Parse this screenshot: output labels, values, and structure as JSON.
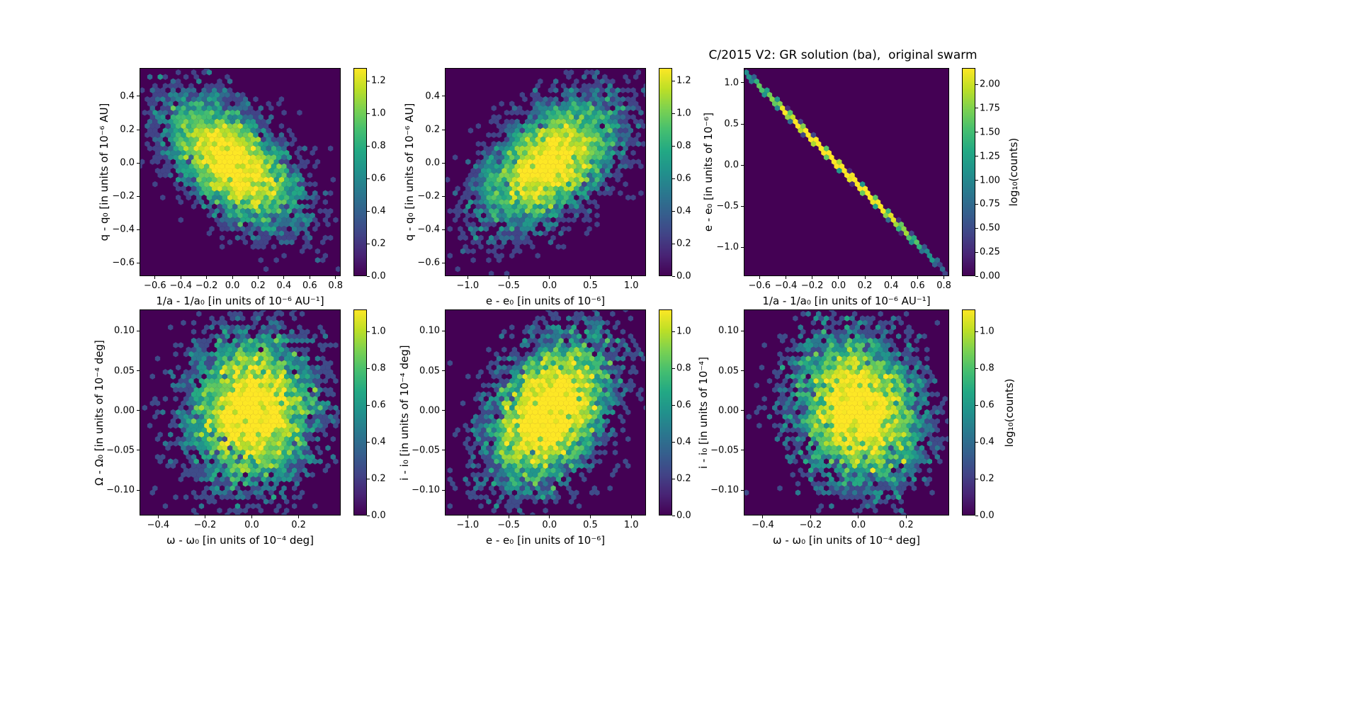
{
  "chart_data": {
    "type": "heatmap",
    "subtype": "hexbin_density_2d",
    "colormap": "viridis",
    "grid": "off",
    "title": "C/2015 V2: GR solution (ba),  original swarm",
    "colorbar_label": "log₁₀(counts)",
    "panels": [
      {
        "id": "dq_vs_dinva",
        "xlabel": "1/a - 1/a₀ [in units of 10⁻⁶ AU⁻¹]",
        "ylabel": "q - q₀ [in units of 10⁻⁶ AU]",
        "xlim": [
          -0.72,
          0.84
        ],
        "ylim": [
          -0.68,
          0.57
        ],
        "xticks": [
          -0.6,
          -0.4,
          -0.2,
          0.0,
          0.2,
          0.4,
          0.6,
          0.8
        ],
        "xtick_labels": [
          "−0.6",
          "−0.4",
          "−0.2",
          "0.0",
          "0.2",
          "0.4",
          "0.6",
          "0.8"
        ],
        "yticks": [
          -0.6,
          -0.4,
          -0.2,
          0.0,
          0.2,
          0.4
        ],
        "ytick_labels": [
          "−0.6",
          "−0.4",
          "−0.2",
          "0.0",
          "0.2",
          "0.4"
        ],
        "colorbar": {
          "min": 0,
          "max": 1.28,
          "ticks": [
            0.0,
            0.2,
            0.4,
            0.6,
            0.8,
            1.0,
            1.2
          ],
          "tick_labels": [
            "0.0",
            "0.2",
            "0.4",
            "0.6",
            "0.8",
            "1.0",
            "1.2"
          ]
        },
        "distribution": {
          "kind": "gaussian",
          "center": [
            0.0,
            0.0
          ],
          "sigma": [
            0.25,
            0.19
          ],
          "corr": -0.55,
          "peak_log10_counts": 1.26
        }
      },
      {
        "id": "dq_vs_de",
        "xlabel": "e - e₀ [in units of 10⁻⁶]",
        "ylabel": "q - q₀ [in units of 10⁻⁶ AU]",
        "xlim": [
          -1.28,
          1.18
        ],
        "ylim": [
          -0.68,
          0.57
        ],
        "xticks": [
          -1.0,
          -0.5,
          0.0,
          0.5,
          1.0
        ],
        "xtick_labels": [
          "−1.0",
          "−0.5",
          "0.0",
          "0.5",
          "1.0"
        ],
        "yticks": [
          -0.6,
          -0.4,
          -0.2,
          0.0,
          0.2,
          0.4
        ],
        "ytick_labels": [
          "−0.6",
          "−0.4",
          "−0.2",
          "0.0",
          "0.2",
          "0.4"
        ],
        "colorbar": {
          "min": 0,
          "max": 1.28,
          "ticks": [
            0.0,
            0.2,
            0.4,
            0.6,
            0.8,
            1.0,
            1.2
          ],
          "tick_labels": [
            "0.0",
            "0.2",
            "0.4",
            "0.6",
            "0.8",
            "1.0",
            "1.2"
          ]
        },
        "distribution": {
          "kind": "gaussian",
          "center": [
            0.0,
            0.0
          ],
          "sigma": [
            0.42,
            0.19
          ],
          "corr": 0.52,
          "peak_log10_counts": 1.26
        }
      },
      {
        "id": "de_vs_dinva",
        "xlabel": "1/a - 1/a₀ [in units of 10⁻⁶ AU⁻¹]",
        "ylabel": "e - e₀ [in units of 10⁻⁶]",
        "xlim": [
          -0.72,
          0.84
        ],
        "ylim": [
          -1.35,
          1.18
        ],
        "xticks": [
          -0.6,
          -0.4,
          -0.2,
          0.0,
          0.2,
          0.4,
          0.6,
          0.8
        ],
        "xtick_labels": [
          "−0.6",
          "−0.4",
          "−0.2",
          "0.0",
          "0.2",
          "0.4",
          "0.6",
          "0.8"
        ],
        "yticks": [
          -1.0,
          -0.5,
          0.0,
          0.5,
          1.0
        ],
        "ytick_labels": [
          "−1.0",
          "−0.5",
          "0.0",
          "0.5",
          "1.0"
        ],
        "colorbar": {
          "min": 0,
          "max": 2.17,
          "ticks": [
            0.0,
            0.25,
            0.5,
            0.75,
            1.0,
            1.25,
            1.5,
            1.75,
            2.0
          ],
          "tick_labels": [
            "0.00",
            "0.25",
            "0.50",
            "0.75",
            "1.00",
            "1.25",
            "1.50",
            "1.75",
            "2.00"
          ]
        },
        "distribution": {
          "kind": "line",
          "slope": -1.6,
          "intercept": 0.0,
          "x_sigma": 0.27,
          "y_jitter": 0.005,
          "peak_log10_counts": 2.1
        }
      },
      {
        "id": "dOmega_vs_domega",
        "xlabel": "ω - ω₀ [in units of 10⁻⁴ deg]",
        "ylabel": "Ω - Ω₀ [in units of 10⁻⁴ deg]",
        "xlim": [
          -0.48,
          0.38
        ],
        "ylim": [
          -0.132,
          0.127
        ],
        "xticks": [
          -0.4,
          -0.2,
          0.0,
          0.2
        ],
        "xtick_labels": [
          "−0.4",
          "−0.2",
          "0.0",
          "0.2"
        ],
        "yticks": [
          -0.1,
          -0.05,
          0.0,
          0.05,
          0.1
        ],
        "ytick_labels": [
          "−0.10",
          "−0.05",
          "0.00",
          "0.05",
          "0.10"
        ],
        "colorbar": {
          "min": 0,
          "max": 1.12,
          "ticks": [
            0.0,
            0.2,
            0.4,
            0.6,
            0.8,
            1.0
          ],
          "tick_labels": [
            "0.0",
            "0.2",
            "0.4",
            "0.6",
            "0.8",
            "1.0"
          ]
        },
        "distribution": {
          "kind": "gaussian",
          "center": [
            0.0,
            0.0
          ],
          "sigma": [
            0.135,
            0.047
          ],
          "corr": 0.05,
          "peak_log10_counts": 1.05
        }
      },
      {
        "id": "di_vs_de",
        "xlabel": "e - e₀ [in units of 10⁻⁶]",
        "ylabel": "i - i₀ [in units of 10⁻⁴ deg]",
        "xlim": [
          -1.28,
          1.18
        ],
        "ylim": [
          -0.132,
          0.127
        ],
        "xticks": [
          -1.0,
          -0.5,
          0.0,
          0.5,
          1.0
        ],
        "xtick_labels": [
          "−1.0",
          "−0.5",
          "0.0",
          "0.5",
          "1.0"
        ],
        "yticks": [
          -0.1,
          -0.05,
          0.0,
          0.05,
          0.1
        ],
        "ytick_labels": [
          "−0.10",
          "−0.05",
          "0.00",
          "0.05",
          "0.10"
        ],
        "colorbar": {
          "min": 0,
          "max": 1.12,
          "ticks": [
            0.0,
            0.2,
            0.4,
            0.6,
            0.8,
            1.0
          ],
          "tick_labels": [
            "0.0",
            "0.2",
            "0.4",
            "0.6",
            "0.8",
            "1.0"
          ]
        },
        "distribution": {
          "kind": "gaussian",
          "center": [
            0.0,
            0.0
          ],
          "sigma": [
            0.37,
            0.047
          ],
          "corr": 0.38,
          "peak_log10_counts": 1.05
        }
      },
      {
        "id": "di_vs_domega",
        "xlabel": "ω - ω₀ [in units of 10⁻⁴ deg]",
        "ylabel": "i - i₀ [in units of 10⁻⁴]",
        "xlim": [
          -0.48,
          0.38
        ],
        "ylim": [
          -0.132,
          0.127
        ],
        "xticks": [
          -0.4,
          -0.2,
          0.0,
          0.2
        ],
        "xtick_labels": [
          "−0.4",
          "−0.2",
          "0.0",
          "0.2"
        ],
        "yticks": [
          -0.1,
          -0.05,
          0.0,
          0.05,
          0.1
        ],
        "ytick_labels": [
          "−0.10",
          "−0.05",
          "0.00",
          "0.05",
          "0.10"
        ],
        "colorbar": {
          "min": 0,
          "max": 1.12,
          "ticks": [
            0.0,
            0.2,
            0.4,
            0.6,
            0.8,
            1.0
          ],
          "tick_labels": [
            "0.0",
            "0.2",
            "0.4",
            "0.6",
            "0.8",
            "1.0"
          ]
        },
        "distribution": {
          "kind": "gaussian",
          "center": [
            0.0,
            0.0
          ],
          "sigma": [
            0.13,
            0.047
          ],
          "corr": -0.12,
          "peak_log10_counts": 1.05
        }
      }
    ],
    "colors": {
      "cmap_min": "#440154",
      "cmap_max": "#fde725",
      "text": "#000000",
      "background": "#ffffff"
    }
  }
}
